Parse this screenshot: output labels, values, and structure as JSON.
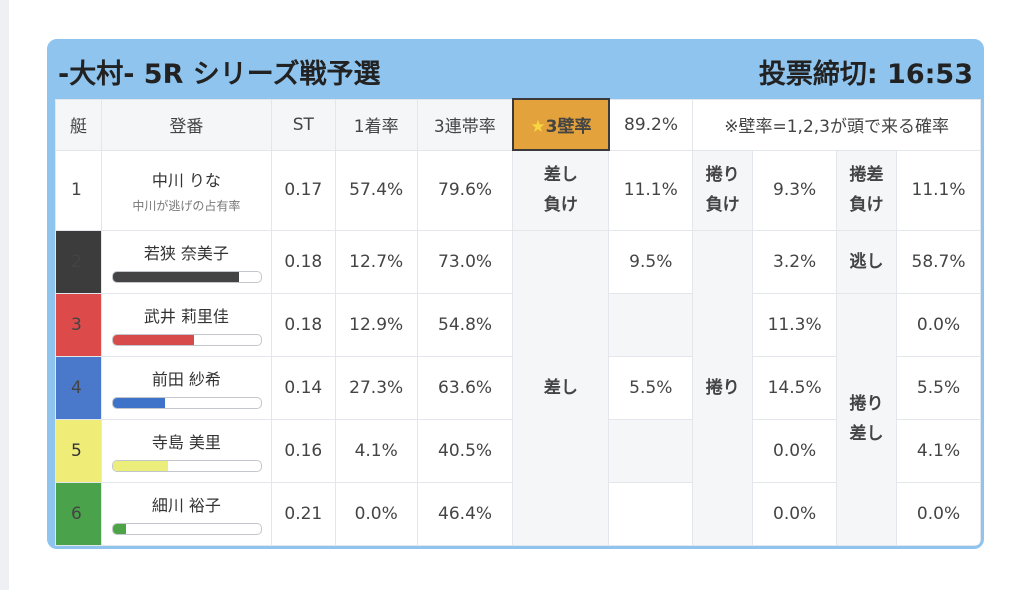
{
  "header": {
    "title": "-大村- 5R シリーズ戦予選",
    "deadline": "投票締切: 16:53"
  },
  "table": {
    "headers": {
      "boat": "艇",
      "name": "登番",
      "st": "ST",
      "first_rate": "1着率",
      "top3_rate": "3連帯率"
    },
    "wall_rate": {
      "star": "★",
      "label": "3壁率",
      "value": "89.2%"
    },
    "note": "※壁率=1,2,3が頭で来る確率",
    "boat1": {
      "number": "1",
      "name": "中川 りな",
      "sub": "中川が逃げの占有率",
      "st": "0.17",
      "first": "57.4%",
      "top3": "79.6%",
      "pattern1_label": "差し\n負け",
      "pattern1_value": "11.1%",
      "pattern2_label": "捲り\n負け",
      "pattern2_value": "9.3%",
      "pattern3_label": "捲差\n負け",
      "pattern3_value": "11.1%"
    },
    "rows": [
      {
        "number": "2",
        "name": "若狭 奈美子",
        "st": "0.18",
        "first": "12.7%",
        "top3": "73.0%",
        "bar_fraction": 0.85,
        "bar_color": "#444444",
        "cell_color": "#3c3c3c",
        "sashi": "9.5%",
        "makuri": "3.2%",
        "mz": "58.7%"
      },
      {
        "number": "3",
        "name": "武井 莉里佳",
        "st": "0.18",
        "first": "12.9%",
        "top3": "54.8%",
        "bar_fraction": 0.55,
        "bar_color": "#d84b4b",
        "cell_color": "#dd4a4a",
        "sashi": "",
        "makuri": "11.3%",
        "mz": "0.0%"
      },
      {
        "number": "4",
        "name": "前田 紗希",
        "st": "0.14",
        "first": "27.3%",
        "top3": "63.6%",
        "bar_fraction": 0.35,
        "bar_color": "#3f73c9",
        "cell_color": "#4a79cb",
        "sashi": "5.5%",
        "makuri": "14.5%",
        "mz": "5.5%"
      },
      {
        "number": "5",
        "name": "寺島 美里",
        "st": "0.16",
        "first": "4.1%",
        "top3": "40.5%",
        "bar_fraction": 0.37,
        "bar_color": "#ecee7c",
        "cell_color": "#f0ec78",
        "sashi": "",
        "makuri": "0.0%",
        "mz": "4.1%"
      },
      {
        "number": "6",
        "name": "細川 裕子",
        "st": "0.21",
        "first": "0.0%",
        "top3": "46.4%",
        "bar_fraction": 0.09,
        "bar_color": "#4da446",
        "cell_color": "#4aa24a",
        "sashi": "",
        "makuri": "0.0%",
        "mz": "0.0%"
      }
    ],
    "pattern_sashi": "差し",
    "pattern_makuri": "捲り",
    "pattern_nige": "逃し",
    "pattern_makurizashi": "捲り\n差し"
  }
}
